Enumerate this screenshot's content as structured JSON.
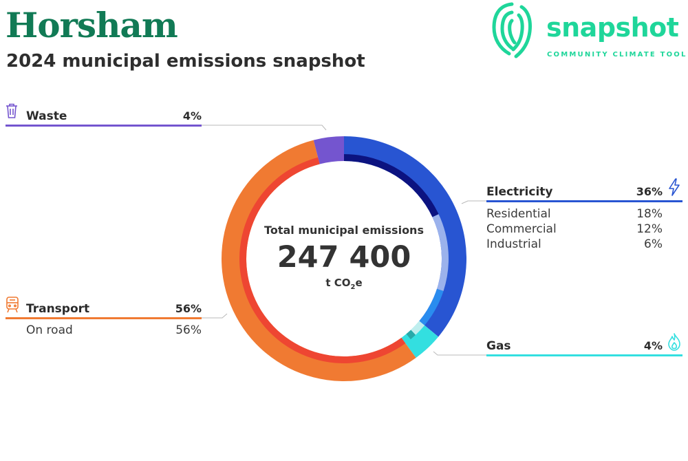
{
  "header": {
    "title": "Horsham",
    "subtitle": "2024 municipal emissions snapshot"
  },
  "brand": {
    "name": "snapshot",
    "tagline": "COMMUNITY CLIMATE TOOL",
    "color": "#1fd69a"
  },
  "center": {
    "label": "Total municipal emissions",
    "value": "247 400",
    "unit_prefix": "t CO",
    "unit_sub": "2",
    "unit_suffix": "e"
  },
  "chart_data": {
    "type": "pie",
    "title": "Total municipal emissions",
    "total": 247400,
    "unit": "t CO2e",
    "categories": [
      {
        "name": "Electricity",
        "value": 36,
        "color": "#2855d2",
        "subcategories": [
          {
            "name": "Residential",
            "value": 18,
            "color": "#0c1380"
          },
          {
            "name": "Commercial",
            "value": 12,
            "color": "#9bb2ec"
          },
          {
            "name": "Industrial",
            "value": 6,
            "color": "#2a8cef"
          }
        ]
      },
      {
        "name": "Gas",
        "value": 4,
        "color": "#33dfe0",
        "subcategories": [
          {
            "name": "",
            "value": 2,
            "color": "#bfeeee"
          },
          {
            "name": "",
            "value": 1,
            "color": "#27a9a9"
          }
        ]
      },
      {
        "name": "Transport",
        "value": 56,
        "color": "#f07a32",
        "subcategories": [
          {
            "name": "On road",
            "value": 56,
            "color": "#ee4632"
          }
        ]
      },
      {
        "name": "Waste",
        "value": 4,
        "color": "#7455cf",
        "subcategories": []
      }
    ]
  },
  "legend": {
    "waste": {
      "name": "Waste",
      "pct": "4%",
      "color": "#7455cf",
      "icon": "trash-icon"
    },
    "electricity": {
      "name": "Electricity",
      "pct": "36%",
      "color": "#2855d2",
      "icon": "lightning-icon",
      "subs": [
        {
          "name": "Residential",
          "value": "18%"
        },
        {
          "name": "Commercial",
          "value": "12%"
        },
        {
          "name": "Industrial",
          "value": "6%"
        }
      ]
    },
    "transport": {
      "name": "Transport",
      "pct": "56%",
      "color": "#f07a32",
      "icon": "train-icon",
      "subs": [
        {
          "name": "On road",
          "value": "56%"
        }
      ]
    },
    "gas": {
      "name": "Gas",
      "pct": "4%",
      "color": "#33dfe0",
      "icon": "flame-icon"
    }
  }
}
